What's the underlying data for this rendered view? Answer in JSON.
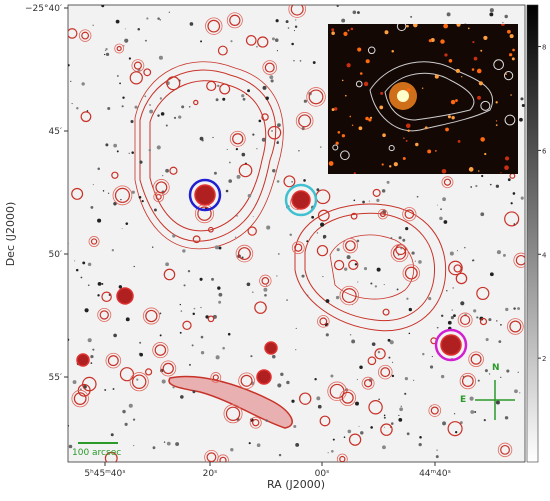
{
  "axes": {
    "x_label": "RA (J2000)",
    "y_label": "Dec (J2000)",
    "x_tick_labels": [
      "5ʰ45ᵐ40ˢ",
      "20ˢ",
      "00ˢ",
      "44ᵐ40ˢ"
    ],
    "y_tick_labels": [
      "−25°40′",
      "45′",
      "50′",
      "55′"
    ]
  },
  "colorbar": {
    "range": [
      0,
      8.8
    ],
    "ticks": [
      2,
      4,
      6,
      8
    ]
  },
  "scale_bar": {
    "label": "100 arcsec"
  },
  "compass": {
    "north": "N",
    "east": "E"
  }
}
